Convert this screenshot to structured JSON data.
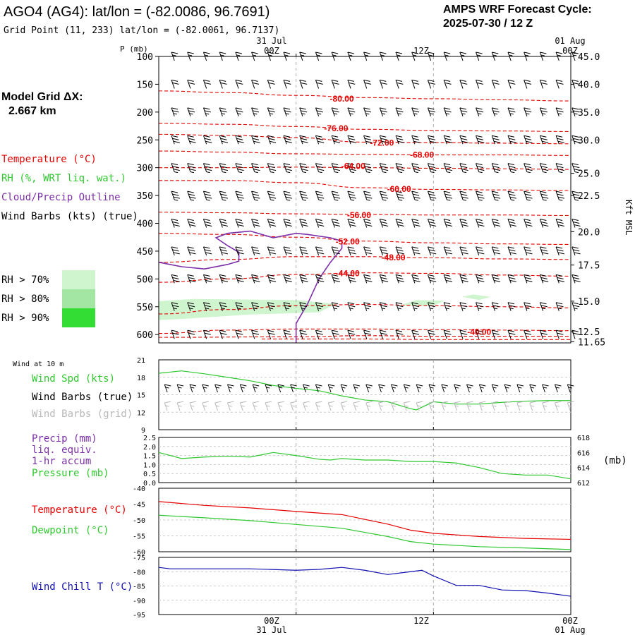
{
  "header": {
    "station": "AGO4 (AG4):  lat/lon = (-82.0086, 96.7691)",
    "grid_point": "Grid Point (11, 233) lat/lon = (-82.0061, 96.7137)",
    "cycle_title": "AMPS WRF Forecast Cycle:",
    "cycle_value": "2025-07-30 / 12  Z"
  },
  "left_panel": {
    "model_grid_label": "Model Grid ΔX:",
    "model_grid_value": "2.667 km",
    "legend_temperature": "Temperature (°C)",
    "legend_rh": "RH (%, WRT liq. wat.)",
    "legend_cloud": "Cloud/Precip Outline",
    "legend_wind": "Wind Barbs (kts) (true)",
    "rh70": "RH > 70%",
    "rh80": "RH > 80%",
    "rh90": "RH > 90%"
  },
  "colors": {
    "temperature": "#e60000",
    "rh": "#2ec82e",
    "cloud": "#7b2fa8",
    "wind": "#000000",
    "wind_grid": "#b8b8b8",
    "windchill": "#1010b0",
    "rh70": "#cff5cf",
    "rh80": "#a3e6a3",
    "rh90": "#33dd33"
  },
  "time_axis": {
    "top_date_left": "31 Jul",
    "top_date_right": "01 Aug",
    "ticks": [
      "00Z",
      "12Z",
      "00Z"
    ],
    "bottom_date_left": "31 Jul",
    "bottom_date_right": "01 Aug"
  },
  "panel_labels": {
    "wind10m": "Wind at 10 m",
    "wind_spd": "Wind Spd (kts)",
    "wind_barbs_true": "Wind Barbs (true)",
    "wind_barbs_grid": "Wind Barbs (grid)",
    "precip": "Precip (mm)",
    "liq_equiv": "liq. equiv.",
    "accum": "1-hr accum",
    "pressure": "Pressure (mb)",
    "pressure_unit": "(mb)",
    "temperature": "Temperature (°C)",
    "dewpoint": "Dewpoint (°C)",
    "windchill": "Wind Chill T (°C)"
  },
  "chart_data": [
    {
      "type": "line",
      "panel": "vertical_cross_section",
      "ylabel": "P (mb)",
      "right_label": "Kft MSL",
      "p_ticks": [
        100,
        150,
        200,
        250,
        300,
        350,
        400,
        450,
        500,
        550,
        600
      ],
      "p_range": [
        100,
        615
      ],
      "kft_ticks": [
        {
          "p": 100,
          "label": "45.0"
        },
        {
          "p": 150,
          "label": "40.0"
        },
        {
          "p": 200,
          "label": "35.0"
        },
        {
          "p": 250,
          "label": "30.0"
        },
        {
          "p": 310,
          "label": "25.0"
        },
        {
          "p": 350,
          "label": "22.5"
        },
        {
          "p": 415,
          "label": "20.0"
        },
        {
          "p": 475,
          "label": "17.5"
        },
        {
          "p": 540,
          "label": "15.0"
        },
        {
          "p": 595,
          "label": "12.5"
        },
        {
          "p": 613,
          "label": "11.65"
        }
      ],
      "time_range_h": [
        -12,
        24
      ],
      "temperature_labels": [
        {
          "t": 4,
          "p": 175,
          "text": "-80.00"
        },
        {
          "t": 3.5,
          "p": 228,
          "text": "-76.00"
        },
        {
          "t": 7.5,
          "p": 254,
          "text": "-72.00"
        },
        {
          "t": 11,
          "p": 276,
          "text": "-68.00"
        },
        {
          "t": 5,
          "p": 296,
          "text": "-64.00"
        },
        {
          "t": 9,
          "p": 337,
          "text": "-60.00"
        },
        {
          "t": 5.5,
          "p": 384,
          "text": "-56.00"
        },
        {
          "t": 4.5,
          "p": 432,
          "text": "-52.00"
        },
        {
          "t": 8.5,
          "p": 460,
          "text": "-48.00"
        },
        {
          "t": 4.5,
          "p": 489,
          "text": "-44.00"
        },
        {
          "t": 16,
          "p": 594,
          "text": "-40.00"
        }
      ],
      "temperature_contours": [
        {
          "pts": [
            [
              -12,
              162
            ],
            [
              -6,
              165
            ],
            [
              0,
              170
            ],
            [
              6,
              174
            ],
            [
              12,
              176
            ],
            [
              18,
              178
            ],
            [
              24,
              180
            ]
          ]
        },
        {
          "pts": [
            [
              -12,
              220
            ],
            [
              -6,
              222
            ],
            [
              0,
              226
            ],
            [
              6,
              231
            ],
            [
              12,
              233
            ],
            [
              18,
              234
            ],
            [
              24,
              235
            ]
          ]
        },
        {
          "pts": [
            [
              -12,
              240
            ],
            [
              -6,
              242
            ],
            [
              0,
              246
            ],
            [
              6,
              254
            ],
            [
              12,
              255
            ],
            [
              18,
              256
            ],
            [
              24,
              257
            ]
          ]
        },
        {
          "pts": [
            [
              -12,
              270
            ],
            [
              -6,
              272
            ],
            [
              0,
              275
            ],
            [
              6,
              276
            ],
            [
              12,
              277
            ],
            [
              18,
              277
            ],
            [
              24,
              278
            ]
          ]
        },
        {
          "pts": [
            [
              -12,
              300
            ],
            [
              -6,
              300
            ],
            [
              0,
              299
            ],
            [
              6,
              300
            ],
            [
              12,
              301
            ],
            [
              18,
              302
            ],
            [
              24,
              303
            ]
          ]
        },
        {
          "pts": [
            [
              -12,
              323
            ],
            [
              -6,
              323
            ],
            [
              0,
              327
            ],
            [
              6,
              336
            ],
            [
              12,
              339
            ],
            [
              18,
              340
            ],
            [
              24,
              341
            ]
          ]
        },
        {
          "pts": [
            [
              -12,
              380
            ],
            [
              -6,
              381
            ],
            [
              0,
              383
            ],
            [
              6,
              384
            ],
            [
              12,
              385
            ],
            [
              18,
              385
            ],
            [
              24,
              386
            ]
          ]
        },
        {
          "pts": [
            [
              -12,
              418
            ],
            [
              -6,
              420
            ],
            [
              0,
              425
            ],
            [
              6,
              432
            ],
            [
              12,
              435
            ],
            [
              18,
              437
            ],
            [
              24,
              438
            ]
          ]
        },
        {
          "pts": [
            [
              -12,
              470
            ],
            [
              -6,
              465
            ],
            [
              0,
              460
            ],
            [
              6,
              460
            ],
            [
              12,
              462
            ],
            [
              18,
              464
            ],
            [
              24,
              465
            ]
          ]
        },
        {
          "pts": [
            [
              -12,
              506
            ],
            [
              -6,
              500
            ],
            [
              0,
              492
            ],
            [
              6,
              489
            ],
            [
              12,
              490
            ],
            [
              18,
              493
            ],
            [
              24,
              495
            ]
          ]
        },
        {
          "pts": [
            [
              -12,
              563
            ],
            [
              -6,
              555
            ],
            [
              0,
              548
            ],
            [
              6,
              546
            ],
            [
              12,
              548
            ],
            [
              18,
              550
            ],
            [
              24,
              552
            ]
          ]
        },
        {
          "pts": [
            [
              -12,
              598
            ],
            [
              -6,
              592
            ],
            [
              0,
              590
            ],
            [
              6,
              590
            ],
            [
              12,
              591
            ],
            [
              18,
              592
            ],
            [
              24,
              593
            ]
          ]
        },
        {
          "pts": [
            [
              -12,
              605
            ],
            [
              0,
              604
            ],
            [
              6,
              602
            ],
            [
              12,
              603
            ],
            [
              24,
              603
            ]
          ]
        },
        {
          "pts": [
            [
              -3,
              608
            ],
            [
              6,
              608
            ],
            [
              12,
              609
            ],
            [
              24,
              609
            ]
          ]
        }
      ],
      "cloud_outline": [
        [
          -12,
          470
        ],
        [
          -10,
          478
        ],
        [
          -8,
          482
        ],
        [
          -6,
          474
        ],
        [
          -5,
          468
        ],
        [
          -5,
          452
        ],
        [
          -6,
          440
        ],
        [
          -7,
          426
        ],
        [
          -6,
          418
        ],
        [
          -4,
          414
        ],
        [
          -3,
          420
        ],
        [
          -2,
          426
        ],
        [
          0,
          418
        ],
        [
          1,
          420
        ],
        [
          3,
          426
        ],
        [
          4,
          432
        ],
        [
          4,
          445
        ],
        [
          3,
          470
        ],
        [
          2,
          500
        ],
        [
          1,
          545
        ],
        [
          0,
          580
        ],
        [
          0,
          615
        ]
      ],
      "rh_regions": [
        {
          "level": "rh70",
          "pts": [
            [
              -12,
              540
            ],
            [
              -9,
              536
            ],
            [
              -5,
              537
            ],
            [
              0,
              538
            ],
            [
              2,
              542
            ],
            [
              3.5,
              545
            ],
            [
              2,
              560
            ],
            [
              -4,
              564
            ],
            [
              -10,
              572
            ],
            [
              -12,
              574
            ]
          ]
        },
        {
          "level": "rh70",
          "pts": [
            [
              9,
              548
            ],
            [
              10.5,
              538
            ],
            [
              13,
              539
            ],
            [
              12,
              548
            ]
          ]
        },
        {
          "level": "rh70",
          "pts": [
            [
              14.5,
              532
            ],
            [
              15.5,
              528
            ],
            [
              17,
              532
            ],
            [
              16,
              538
            ]
          ]
        }
      ],
      "wind_rows": [
        {
          "p": 100,
          "spd": 15,
          "dir": "NW"
        },
        {
          "p": 150,
          "spd": 20,
          "dir": "NW"
        },
        {
          "p": 200,
          "spd": 25,
          "dir": "NW"
        },
        {
          "p": 250,
          "spd": 30,
          "dir": "NW"
        },
        {
          "p": 300,
          "spd": 35,
          "dir": "NW"
        },
        {
          "p": 350,
          "spd": 35,
          "dir": "NW"
        },
        {
          "p": 400,
          "spd": 30,
          "dir": "NW"
        },
        {
          "p": 450,
          "spd": 30,
          "dir": "NW"
        },
        {
          "p": 500,
          "spd": 30,
          "dir": "NW"
        },
        {
          "p": 550,
          "spd": 25,
          "dir": "NW"
        },
        {
          "p": 600,
          "spd": 20,
          "dir": "NW"
        }
      ]
    },
    {
      "type": "line",
      "panel": "wind10m",
      "ylim": [
        9,
        21
      ],
      "yticks": [
        9,
        12,
        15,
        18,
        21
      ],
      "series": [
        {
          "name": "Wind Spd (kts)",
          "x": [
            -12,
            -10,
            -8,
            -6,
            -4,
            -2,
            0,
            2,
            4,
            6,
            8,
            10,
            10.5,
            12,
            14,
            16,
            18,
            20,
            22,
            24
          ],
          "values": [
            18.7,
            19.1,
            18.6,
            18.0,
            17.4,
            16.6,
            16.1,
            15.7,
            14.8,
            14.1,
            13.8,
            12.6,
            12.4,
            13.8,
            13.4,
            13.4,
            13.7,
            13.9,
            14.0,
            14.0
          ]
        }
      ]
    },
    {
      "type": "line",
      "panel": "pressure",
      "ylim_left": [
        0,
        2.5
      ],
      "yticks_left": [
        "0.0",
        "0.5",
        "1.0",
        "1.5",
        "2.0",
        "2.5"
      ],
      "ylim_right": [
        612,
        618
      ],
      "yticks_right": [
        612,
        614,
        616,
        618
      ],
      "series": [
        {
          "name": "Pressure (mb)",
          "x": [
            -12,
            -11,
            -10,
            -8,
            -6,
            -4,
            -2,
            0,
            2,
            3,
            4,
            6,
            8,
            10,
            12,
            14,
            16,
            17,
            18,
            20,
            22,
            24
          ],
          "values": [
            616.0,
            615.6,
            615.2,
            615.4,
            615.5,
            615.4,
            616.0,
            615.6,
            615.1,
            615.0,
            615.2,
            615.0,
            615.0,
            614.8,
            614.8,
            614.6,
            614.0,
            613.6,
            613.2,
            613.0,
            613.0,
            612.5
          ]
        }
      ]
    },
    {
      "type": "line",
      "panel": "temperature",
      "ylim": [
        -60,
        -40
      ],
      "yticks": [
        -40,
        -45,
        -50,
        -55,
        -60
      ],
      "series": [
        {
          "name": "Temperature (°C)",
          "x": [
            -12,
            -8,
            -4,
            0,
            4,
            8,
            10,
            12,
            16,
            20,
            24
          ],
          "values": [
            -44.2,
            -45.4,
            -46.2,
            -47.3,
            -48.3,
            -51.3,
            -53.2,
            -54.2,
            -55.2,
            -55.8,
            -56.1
          ]
        },
        {
          "name": "Dewpoint (°C)",
          "x": [
            -12,
            -8,
            -4,
            0,
            4,
            8,
            10,
            12,
            16,
            20,
            24
          ],
          "values": [
            -48.5,
            -49.3,
            -50.2,
            -51.4,
            -52.6,
            -55.2,
            -56.8,
            -57.6,
            -58.4,
            -58.8,
            -59.3
          ]
        }
      ]
    },
    {
      "type": "line",
      "panel": "windchill",
      "ylim": [
        -95,
        -75
      ],
      "yticks": [
        -75,
        -80,
        -85,
        -90,
        -95
      ],
      "series": [
        {
          "name": "Wind Chill T (°C)",
          "x": [
            -12,
            -11,
            -8,
            -4,
            0,
            2,
            4,
            6,
            8,
            10,
            11,
            12,
            14,
            16,
            18,
            20,
            22,
            24
          ],
          "values": [
            -78.5,
            -79.0,
            -79.0,
            -79.0,
            -79.5,
            -79.2,
            -78.5,
            -79.5,
            -81.0,
            -80.0,
            -79.5,
            -81.5,
            -84.8,
            -84.8,
            -86.4,
            -86.6,
            -87.5,
            -88.6
          ]
        }
      ]
    }
  ]
}
